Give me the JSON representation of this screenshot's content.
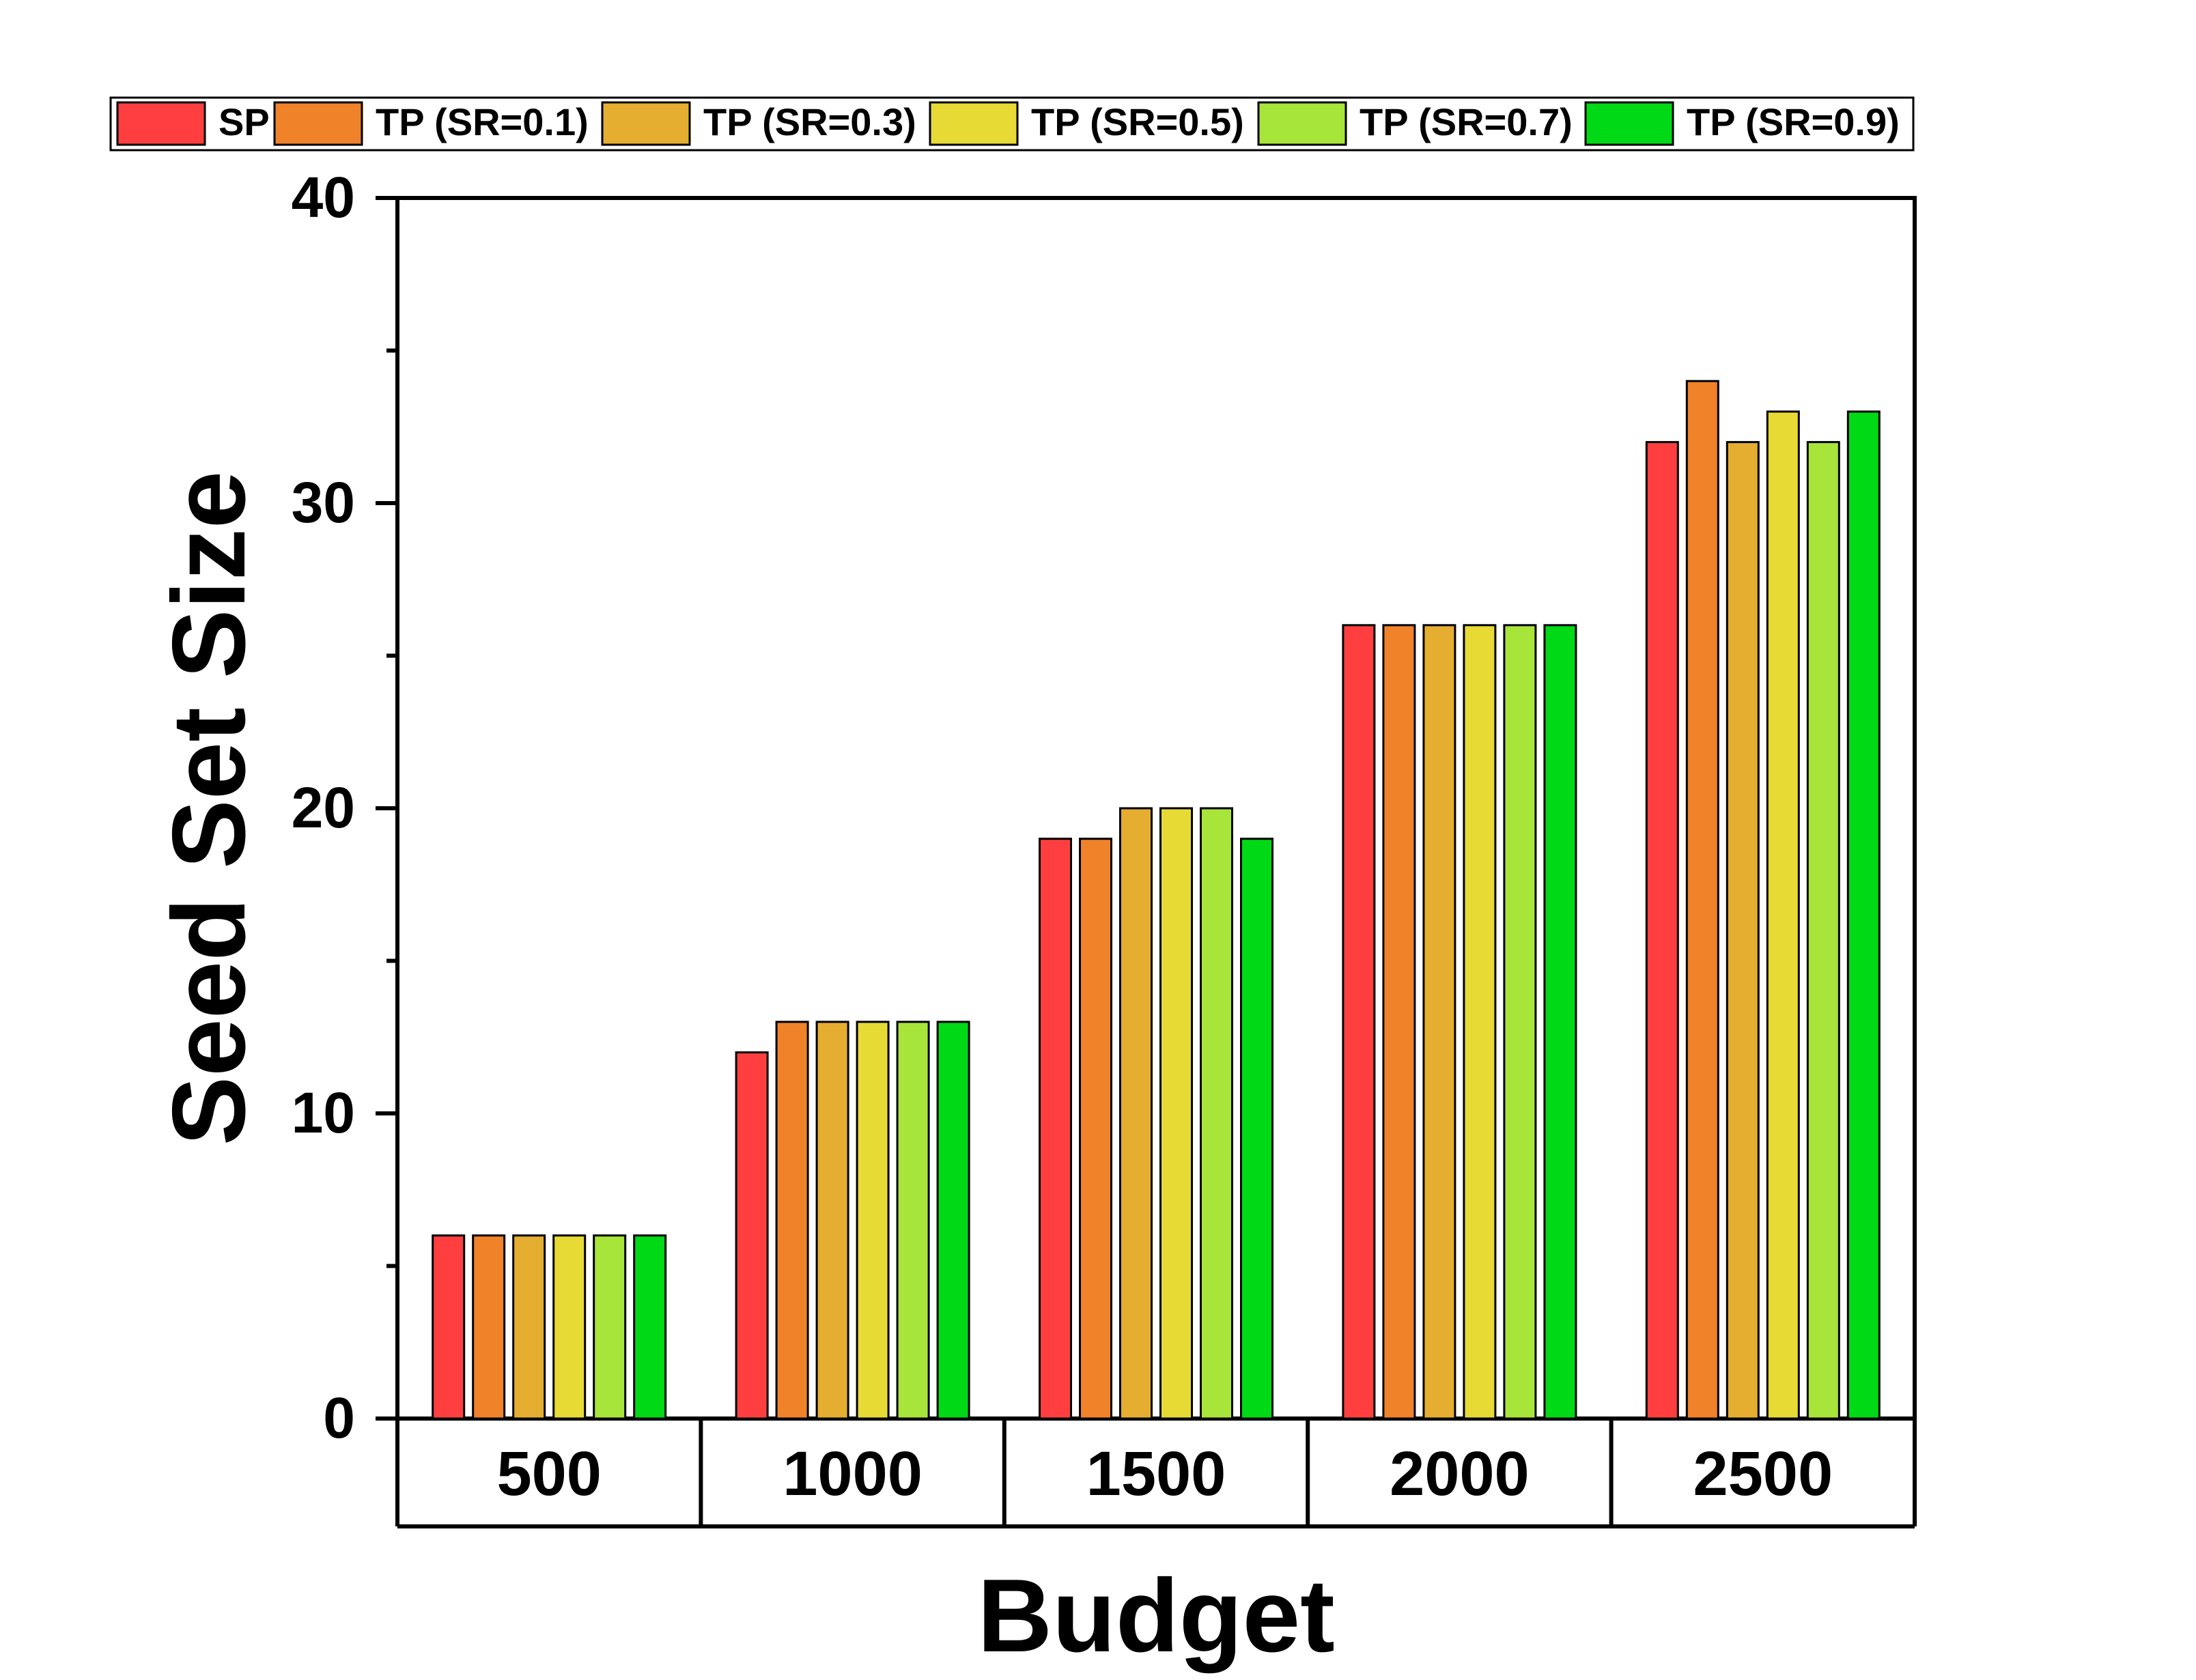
{
  "chart_data": {
    "type": "bar",
    "xlabel": "Budget",
    "ylabel": "Seed Set Size",
    "ylim": [
      0,
      40
    ],
    "yticks": [
      "0",
      "10",
      "20",
      "30",
      "40"
    ],
    "categories": [
      "500",
      "1000",
      "1500",
      "2000",
      "2500"
    ],
    "legend_position": "top",
    "series": [
      {
        "name": "SP",
        "color": "#FF3F3F",
        "values": [
          6,
          12,
          19,
          26,
          32
        ]
      },
      {
        "name": "TP (SR=0.1)",
        "color": "#F0822A",
        "values": [
          6,
          13,
          19,
          26,
          34
        ]
      },
      {
        "name": "TP (SR=0.3)",
        "color": "#E5AE30",
        "values": [
          6,
          13,
          20,
          26,
          32
        ]
      },
      {
        "name": "TP (SR=0.5)",
        "color": "#E8DA35",
        "values": [
          6,
          13,
          20,
          26,
          33
        ]
      },
      {
        "name": "TP (SR=0.7)",
        "color": "#A8E53A",
        "values": [
          6,
          13,
          20,
          26,
          32
        ]
      },
      {
        "name": "TP (SR=0.9)",
        "color": "#00D915",
        "values": [
          6,
          13,
          19,
          26,
          33
        ]
      }
    ]
  }
}
